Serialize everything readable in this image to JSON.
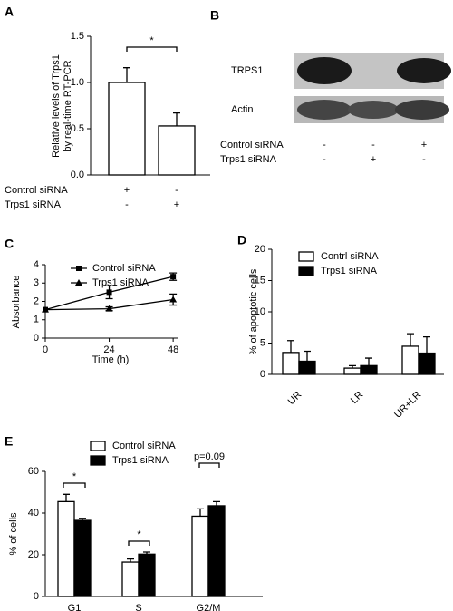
{
  "chart_data": [
    {
      "type": "bar",
      "panel": "A",
      "ylabel": [
        "Relative levels of Trps1",
        "by real-time RT-PCR"
      ],
      "ylim": [
        0,
        1.5
      ],
      "yticks": [
        {
          "value": 0,
          "label": "0.0"
        },
        0.5,
        {
          "value": 1,
          "label": "1.0"
        },
        1.5
      ],
      "series": [
        {
          "color": "#ffffff",
          "values": [
            1.0,
            0.53
          ],
          "errors": [
            0.16,
            0.14
          ]
        }
      ],
      "annotations": [
        "*"
      ],
      "conditions": [
        {
          "name": "Control siRNA",
          "marks": [
            "+",
            "-"
          ]
        },
        {
          "name": "Trps1 siRNA",
          "marks": [
            "-",
            "+"
          ]
        }
      ]
    },
    {
      "type": "line",
      "panel": "C",
      "ylabel": [
        "Absorbance"
      ],
      "xlabel": "Time (h)",
      "x": [
        0,
        24,
        48
      ],
      "xlim": [
        0,
        50
      ],
      "xticks": [
        0,
        24,
        48
      ],
      "ylim": [
        0,
        4
      ],
      "yticks": [
        0,
        1,
        2,
        3,
        4
      ],
      "series": [
        {
          "name": "Control siRNA",
          "color": "#000000",
          "marker": "square",
          "values": [
            1.55,
            2.5,
            3.35
          ],
          "errors": [
            0,
            0.35,
            0.2
          ]
        },
        {
          "name": "Trps1 siRNA",
          "color": "#000000",
          "marker": "triangle",
          "values": [
            1.55,
            1.6,
            2.1
          ],
          "errors": [
            0,
            0.1,
            0.3
          ]
        }
      ]
    },
    {
      "type": "bar",
      "panel": "D",
      "ylabel": [
        "% of apoptotic cells"
      ],
      "categories": [
        "UR",
        "LR",
        "UR+LR"
      ],
      "ylim": [
        0,
        20
      ],
      "yticks": [
        0,
        5,
        10,
        15,
        20
      ],
      "series": [
        {
          "name": "Contrl siRNA",
          "color": "#ffffff",
          "values": [
            3.5,
            1.0,
            4.5
          ],
          "errors": [
            1.9,
            0.4,
            2.0
          ]
        },
        {
          "name": "Trps1 siRNA",
          "color": "#000000",
          "values": [
            2.1,
            1.4,
            3.4
          ],
          "errors": [
            1.6,
            1.2,
            2.6
          ]
        }
      ]
    },
    {
      "type": "bar",
      "panel": "E",
      "ylabel": [
        "% of cells"
      ],
      "categories": [
        "G1",
        "S",
        "G2/M"
      ],
      "ylim": [
        0,
        60
      ],
      "yticks": [
        0,
        20,
        40,
        60
      ],
      "series": [
        {
          "name": "Control siRNA",
          "color": "#ffffff",
          "values": [
            45.5,
            16.5,
            38.5
          ],
          "errors": [
            3.5,
            1.5,
            3.5
          ]
        },
        {
          "name": "Trps1 siRNA",
          "color": "#000000",
          "values": [
            36.5,
            20.3,
            43.5
          ],
          "errors": [
            1.0,
            1.0,
            2.0
          ]
        }
      ],
      "annotations": [
        "*",
        "*",
        "p=0.09"
      ]
    }
  ],
  "blot": {
    "panel": "B",
    "rows": [
      "TRPS1",
      "Actin"
    ],
    "conditions": [
      {
        "name": "Control siRNA",
        "marks": [
          "-",
          "-",
          "+"
        ]
      },
      {
        "name": "Trps1 siRNA",
        "marks": [
          "-",
          "+",
          "-"
        ]
      }
    ]
  }
}
